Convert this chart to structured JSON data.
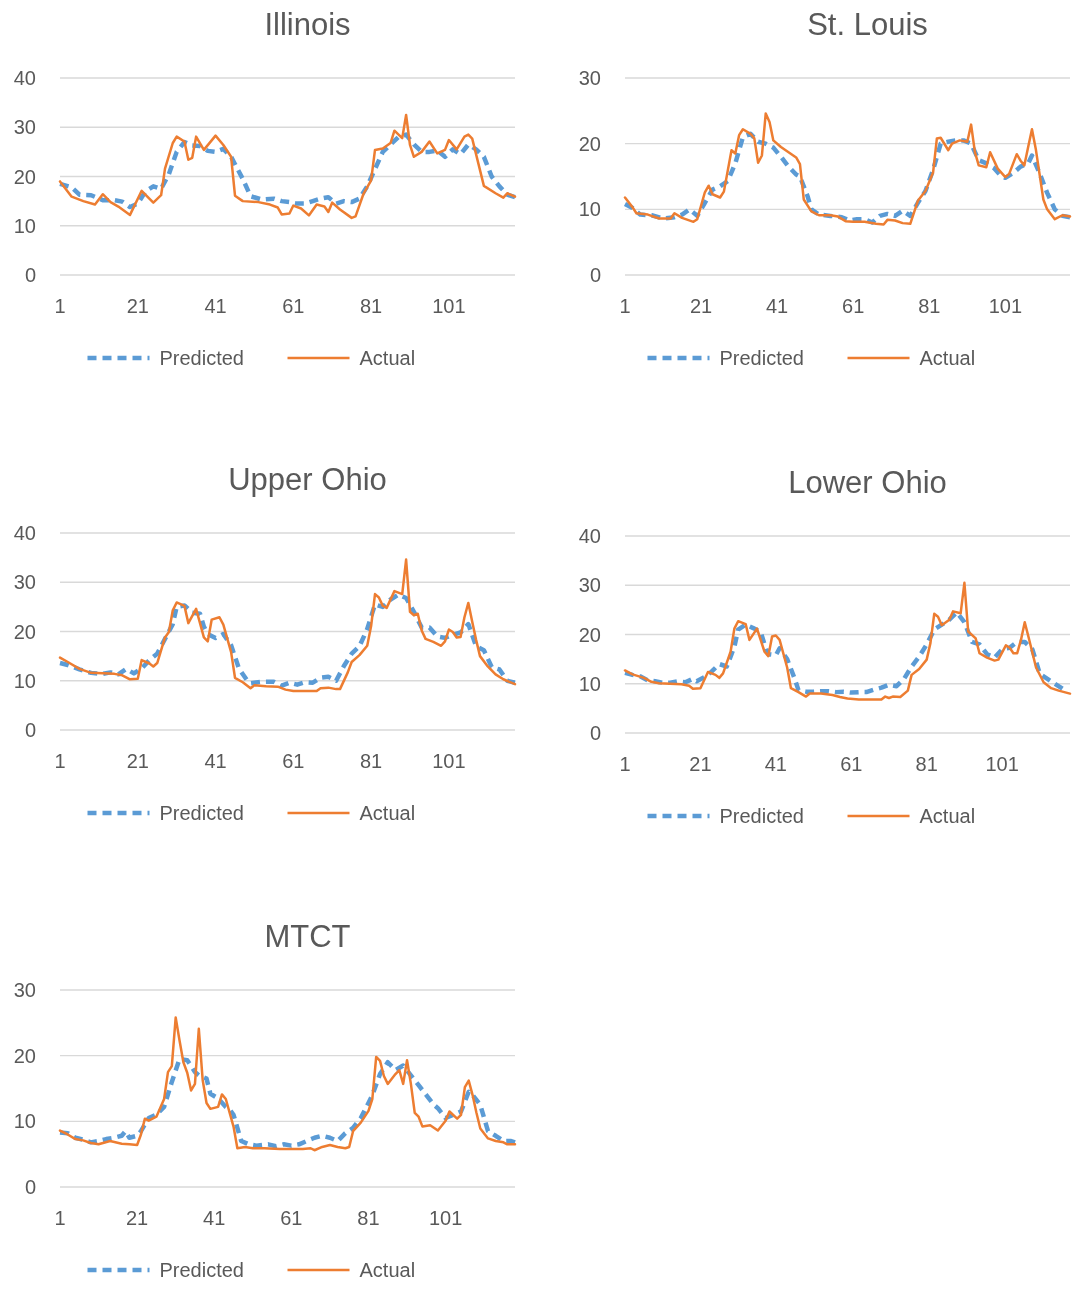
{
  "chart_data": [
    {
      "type": "line",
      "title": "Illinois",
      "xlim": [
        1,
        118
      ],
      "xticks": [
        1,
        21,
        41,
        61,
        81,
        101
      ],
      "ylim": [
        0,
        40
      ],
      "yticks": [
        0,
        10,
        20,
        30,
        40
      ],
      "grid": "y",
      "legend": "bottom",
      "series": [
        {
          "name": "Predicted",
          "color": "#5b9bd5",
          "line_style": "dashed",
          "x": [
            1,
            4,
            6,
            9,
            12,
            15,
            17,
            19,
            21,
            23,
            25,
            27,
            29,
            31,
            33,
            35,
            37,
            39,
            41,
            43,
            45,
            46,
            48,
            50,
            53,
            56,
            58,
            60,
            62,
            64,
            66,
            68,
            70,
            72,
            74,
            76,
            78,
            80,
            82,
            84,
            86,
            88,
            90,
            92,
            94,
            96,
            98,
            100,
            102,
            104,
            106,
            108,
            110,
            112,
            114,
            116,
            118
          ],
          "values": [
            18.5,
            17.8,
            16.3,
            16.2,
            15.2,
            15.2,
            14.9,
            13.8,
            14.5,
            17,
            18,
            17.5,
            20.5,
            25,
            27,
            26.3,
            26.2,
            25.2,
            25,
            25.6,
            24,
            22.5,
            19.5,
            16,
            15.3,
            15.5,
            15,
            14.8,
            14.5,
            14.5,
            15,
            15.5,
            15.8,
            14.5,
            15,
            14.8,
            15.5,
            18,
            21.5,
            25,
            26.5,
            28,
            28.5,
            26.5,
            25,
            25,
            25.3,
            24,
            25.5,
            24.5,
            26.5,
            25.5,
            24,
            20,
            18,
            16.3,
            15.8
          ]
        },
        {
          "name": "Actual",
          "color": "#ed7d31",
          "line_style": "solid",
          "x": [
            1,
            4,
            7,
            10,
            12,
            14,
            16,
            19,
            22,
            25,
            27,
            28,
            30,
            31,
            33,
            34,
            35,
            36,
            38,
            41,
            43,
            45,
            46,
            48,
            52,
            55,
            57,
            58,
            60,
            61,
            63,
            65,
            67,
            69,
            70,
            71,
            73,
            76,
            77,
            79,
            81,
            82,
            84,
            86,
            87,
            89,
            90,
            91,
            92,
            94,
            96,
            98,
            100,
            101,
            103,
            105,
            106,
            107,
            110,
            113,
            115,
            116,
            118
          ],
          "values": [
            19,
            15.9,
            15,
            14.3,
            16.4,
            14.8,
            13.9,
            12.2,
            17.1,
            14.7,
            16.2,
            21.6,
            26.8,
            28.1,
            27.1,
            23.4,
            23.8,
            28.1,
            25.4,
            28.3,
            26.4,
            24,
            16.1,
            15,
            14.8,
            14.3,
            13.7,
            12.3,
            12.5,
            14.1,
            13.5,
            12.1,
            14.3,
            13.9,
            12.8,
            14.7,
            13.3,
            11.6,
            11.9,
            16.4,
            19.2,
            25.4,
            25.7,
            26.8,
            29.3,
            27.8,
            32.5,
            26.4,
            24,
            25,
            27.1,
            24.7,
            25.4,
            27.4,
            25.5,
            28.1,
            28.5,
            27.7,
            18.1,
            16.6,
            15.7,
            16.6,
            15.9
          ]
        }
      ]
    },
    {
      "type": "line",
      "title": "St. Louis",
      "xlim": [
        1,
        118
      ],
      "xticks": [
        1,
        21,
        41,
        61,
        81,
        101
      ],
      "ylim": [
        0,
        30
      ],
      "yticks": [
        0,
        10,
        20,
        30
      ],
      "grid": "y",
      "legend": "bottom",
      "series": [
        {
          "name": "Predicted",
          "color": "#5b9bd5",
          "line_style": "dashed",
          "x": [
            1,
            3,
            5,
            8,
            11,
            14,
            16,
            18,
            19,
            20,
            22,
            24,
            26,
            28,
            30,
            32,
            34,
            36,
            38,
            40,
            42,
            44,
            46,
            47,
            49,
            50,
            52,
            55,
            58,
            60,
            62,
            64,
            66,
            68,
            70,
            72,
            74,
            76,
            78,
            80,
            82,
            84,
            86,
            88,
            90,
            92,
            94,
            96,
            98,
            100,
            101,
            103,
            105,
            107,
            108,
            110,
            112,
            114,
            116,
            118
          ],
          "values": [
            10.8,
            10.2,
            9.2,
            9.1,
            8.6,
            8.8,
            9.2,
            10,
            9.5,
            9,
            11,
            13,
            13.5,
            14.3,
            17,
            21,
            21.5,
            20.3,
            20,
            19.4,
            18,
            16.5,
            15.3,
            15,
            12,
            10,
            9.2,
            9,
            8.8,
            8.3,
            8.5,
            8.5,
            8,
            9,
            9.3,
            9,
            9.8,
            9,
            11,
            12.8,
            16,
            20,
            20.3,
            20.5,
            20.5,
            20,
            17.5,
            17,
            16.3,
            15,
            14.8,
            15.5,
            16.5,
            17,
            18.2,
            15.5,
            12.5,
            10,
            9,
            8.8
          ]
        },
        {
          "name": "Actual",
          "color": "#ed7d31",
          "line_style": "solid",
          "x": [
            1,
            3,
            4,
            7,
            10,
            13,
            14,
            16,
            19,
            20,
            22,
            23,
            24,
            26,
            27,
            29,
            30,
            31,
            32,
            34,
            35,
            36,
            37,
            38,
            39,
            40,
            42,
            44,
            46,
            47,
            48,
            50,
            52,
            55,
            57,
            59,
            61,
            64,
            67,
            69,
            70,
            72,
            74,
            76,
            78,
            80,
            82,
            83,
            84,
            86,
            87,
            89,
            91,
            92,
            93,
            94,
            96,
            97,
            99,
            101,
            102,
            104,
            105,
            106,
            107,
            108,
            109,
            111,
            112,
            114,
            116,
            118
          ],
          "values": [
            11.8,
            10.3,
            9.4,
            9.2,
            8.6,
            8.6,
            9.4,
            8.7,
            8.1,
            8.5,
            12.6,
            13.6,
            12.3,
            11.8,
            12.7,
            19,
            18.5,
            21.3,
            22.2,
            21.5,
            20.8,
            17.1,
            18.2,
            24.6,
            23.3,
            20.5,
            19.5,
            18.7,
            17.9,
            16.9,
            11.5,
            9.7,
            9.1,
            9.1,
            8.9,
            8.2,
            8.1,
            8.1,
            7.8,
            7.7,
            8.4,
            8.3,
            7.9,
            7.8,
            11.3,
            12.8,
            15.6,
            20.8,
            20.9,
            19,
            20,
            20.5,
            20.3,
            22.9,
            18.7,
            16.7,
            16.4,
            18.7,
            16.2,
            14.9,
            15.4,
            18.4,
            17.4,
            16.7,
            19.5,
            22.2,
            19.2,
            11.5,
            10,
            8.5,
            9.1,
            8.9
          ]
        }
      ]
    },
    {
      "type": "line",
      "title": "Upper Ohio",
      "xlim": [
        1,
        118
      ],
      "xticks": [
        1,
        21,
        41,
        61,
        81,
        101
      ],
      "ylim": [
        0,
        40
      ],
      "yticks": [
        0,
        10,
        20,
        30,
        40
      ],
      "grid": "y",
      "legend": "bottom",
      "series": [
        {
          "name": "Predicted",
          "color": "#5b9bd5",
          "line_style": "dashed",
          "x": [
            1,
            3,
            6,
            9,
            12,
            14,
            16,
            18,
            20,
            22,
            24,
            26,
            28,
            30,
            31,
            33,
            35,
            37,
            38,
            39,
            41,
            43,
            45,
            47,
            49,
            50,
            53,
            56,
            58,
            60,
            62,
            64,
            66,
            68,
            70,
            72,
            74,
            76,
            78,
            80,
            82,
            84,
            86,
            88,
            90,
            92,
            94,
            96,
            98,
            100,
            102,
            104,
            106,
            108,
            110,
            112,
            114,
            116,
            118
          ],
          "values": [
            13.6,
            13.2,
            12.3,
            11.6,
            11.4,
            11.7,
            11.3,
            12.4,
            11.5,
            12.5,
            14.2,
            15.5,
            18.5,
            21.5,
            25,
            25.3,
            23.8,
            23.6,
            21,
            19.5,
            18.7,
            19.5,
            17.2,
            12.5,
            10.2,
            9.5,
            9.8,
            9.8,
            9,
            9.6,
            9.2,
            9.7,
            9.6,
            10.6,
            10.8,
            10,
            13,
            15.5,
            17,
            20.5,
            25.5,
            25,
            26.5,
            27.5,
            26.8,
            24,
            20.8,
            20.8,
            19,
            18.7,
            19.3,
            19.8,
            21.5,
            17,
            16.2,
            12.8,
            12.3,
            10,
            9.6
          ]
        },
        {
          "name": "Actual",
          "color": "#ed7d31",
          "line_style": "solid",
          "x": [
            1,
            3,
            6,
            9,
            12,
            15,
            17,
            19,
            21,
            22,
            24,
            25,
            26,
            28,
            29,
            30,
            31,
            33,
            34,
            36,
            38,
            39,
            40,
            42,
            43,
            45,
            46,
            48,
            50,
            51,
            54,
            57,
            59,
            61,
            64,
            67,
            68,
            70,
            72,
            73,
            75,
            76,
            78,
            80,
            81,
            82,
            83,
            84,
            85,
            87,
            89,
            90,
            91,
            92,
            93,
            94,
            95,
            97,
            99,
            100,
            101,
            102,
            103,
            104,
            105,
            106,
            107,
            108,
            109,
            111,
            113,
            115,
            118
          ],
          "values": [
            14.7,
            13.8,
            12.4,
            11.6,
            11.5,
            11.4,
            11.1,
            10.3,
            10.4,
            14.2,
            13.5,
            12.9,
            13.6,
            18.8,
            19.9,
            24.3,
            25.9,
            25.2,
            21.7,
            24.6,
            18.8,
            18,
            22.4,
            22.9,
            21.4,
            15.8,
            10.6,
            9.7,
            8.5,
            9.1,
            8.9,
            8.8,
            8.2,
            7.9,
            7.9,
            7.9,
            8.5,
            8.6,
            8.3,
            8.3,
            11.7,
            13.8,
            15.2,
            17.1,
            21.1,
            27.6,
            26.9,
            25.2,
            24.8,
            28.2,
            27.6,
            34.6,
            24,
            23.3,
            23.6,
            20.2,
            18.5,
            17.9,
            17.1,
            18,
            20.4,
            19.9,
            18.8,
            18.9,
            22.9,
            25.8,
            22,
            18.3,
            15,
            12.9,
            11.3,
            10.3,
            9.3
          ]
        }
      ]
    },
    {
      "type": "line",
      "title": "Lower Ohio",
      "xlim": [
        1,
        119
      ],
      "xticks": [
        1,
        21,
        41,
        61,
        81,
        101
      ],
      "ylim": [
        0,
        40
      ],
      "yticks": [
        0,
        10,
        20,
        30,
        40
      ],
      "grid": "y",
      "legend": "bottom",
      "series": [
        {
          "name": "Predicted",
          "color": "#5b9bd5",
          "line_style": "dashed",
          "x": [
            1,
            3,
            5,
            7,
            9,
            11,
            13,
            15,
            17,
            19,
            20,
            22,
            24,
            26,
            28,
            30,
            31,
            33,
            35,
            37,
            38,
            39,
            41,
            42,
            44,
            46,
            47,
            49,
            51,
            53,
            55,
            57,
            59,
            61,
            63,
            65,
            67,
            69,
            71,
            73,
            75,
            77,
            79,
            81,
            83,
            85,
            87,
            89,
            91,
            93,
            95,
            97,
            99,
            101,
            103,
            105,
            107,
            109,
            111,
            113,
            115,
            117
          ],
          "values": [
            12.2,
            11.8,
            11.5,
            10.7,
            10.5,
            10.2,
            10.2,
            10.5,
            10.3,
            11,
            10.5,
            11.3,
            12.5,
            14,
            13.5,
            17.5,
            21,
            22,
            21.3,
            20.5,
            18,
            16,
            15.8,
            17.2,
            15,
            11,
            8.7,
            8.4,
            8.4,
            8.5,
            8.5,
            8.3,
            8.4,
            8.2,
            8.3,
            8.3,
            8.8,
            9.2,
            9.8,
            9.5,
            11,
            13.5,
            15.5,
            18,
            21,
            22,
            23,
            24.5,
            22.5,
            18.5,
            18,
            16,
            15.3,
            17,
            17.3,
            18.5,
            18.5,
            17,
            12,
            11,
            10,
            9
          ]
        },
        {
          "name": "Actual",
          "color": "#ed7d31",
          "line_style": "solid",
          "x": [
            1,
            3,
            6,
            8,
            10,
            13,
            16,
            18,
            19,
            21,
            23,
            25,
            26,
            27,
            29,
            30,
            31,
            33,
            34,
            36,
            38,
            39,
            40,
            41,
            42,
            44,
            45,
            47,
            49,
            50,
            53,
            56,
            58,
            60,
            63,
            66,
            69,
            70,
            71,
            72,
            74,
            76,
            77,
            79,
            81,
            82,
            83,
            84,
            85,
            87,
            88,
            90,
            91,
            92,
            94,
            95,
            97,
            99,
            100,
            102,
            103,
            104,
            105,
            106,
            107,
            108,
            110,
            112,
            114,
            116,
            119
          ],
          "values": [
            12.7,
            11.9,
            11.2,
            10.4,
            10.1,
            10,
            9.9,
            9.6,
            9,
            9.1,
            12.4,
            11.8,
            11.2,
            12.1,
            16.5,
            21.2,
            22.7,
            22.1,
            18.9,
            21.2,
            16.5,
            15.6,
            19.6,
            19.8,
            18.9,
            13.3,
            9.1,
            8.3,
            7.4,
            8,
            8,
            7.7,
            7.3,
            7,
            6.8,
            6.8,
            6.8,
            7.4,
            7.1,
            7.4,
            7.3,
            8.6,
            11.8,
            13,
            14.9,
            18.3,
            24.2,
            23.6,
            21.9,
            23,
            24.7,
            24.3,
            30.5,
            20.6,
            19.2,
            16.2,
            15.3,
            14.7,
            14.9,
            17.8,
            17.3,
            16.2,
            16.2,
            18.9,
            22.5,
            19.5,
            13.3,
            10.3,
            9.1,
            8.6,
            8
          ]
        }
      ]
    },
    {
      "type": "line",
      "title": "MTCT",
      "xlim": [
        1,
        119
      ],
      "xticks": [
        1,
        21,
        41,
        61,
        81,
        101
      ],
      "ylim": [
        0,
        30
      ],
      "yticks": [
        0,
        10,
        20,
        30
      ],
      "grid": "y",
      "legend": "bottom",
      "series": [
        {
          "name": "Predicted",
          "color": "#5b9bd5",
          "line_style": "dashed",
          "x": [
            1,
            3,
            5,
            7,
            9,
            11,
            13,
            15,
            17,
            18,
            19,
            21,
            22,
            24,
            26,
            28,
            30,
            32,
            34,
            36,
            37,
            39,
            40,
            42,
            44,
            45,
            46,
            48,
            50,
            52,
            55,
            57,
            59,
            61,
            63,
            65,
            67,
            69,
            71,
            73,
            75,
            77,
            79,
            81,
            82,
            84,
            86,
            88,
            90,
            92,
            94,
            96,
            98,
            99,
            101,
            103,
            105,
            107,
            108,
            110,
            112,
            114,
            116,
            118,
            119
          ],
          "values": [
            8.3,
            8.2,
            7.5,
            7.2,
            6.8,
            7,
            7.3,
            7.5,
            7.8,
            8.5,
            7.5,
            7.8,
            8.5,
            10.5,
            11,
            12.2,
            16,
            19.5,
            19.3,
            17.5,
            17,
            16.5,
            14.2,
            13.5,
            12.2,
            11.8,
            11,
            7,
            6.5,
            6.3,
            6.5,
            6.2,
            6.5,
            6.3,
            6.5,
            7,
            7.5,
            7.8,
            7.5,
            7,
            8.2,
            9,
            10.5,
            12.8,
            14,
            17.2,
            19,
            17.8,
            18.5,
            17,
            15.5,
            14,
            12.5,
            12,
            10.5,
            11,
            11.5,
            14.5,
            14,
            12.5,
            8.5,
            7.8,
            7,
            7,
            6.8
          ]
        },
        {
          "name": "Actual",
          "color": "#ed7d31",
          "line_style": "solid",
          "x": [
            1,
            3,
            5,
            7,
            9,
            11,
            14,
            17,
            19,
            21,
            22,
            23,
            24,
            26,
            28,
            29,
            30,
            31,
            32,
            33,
            34,
            35,
            36,
            37,
            38,
            39,
            40,
            42,
            43,
            44,
            46,
            47,
            49,
            51,
            54,
            58,
            61,
            64,
            66,
            67,
            69,
            71,
            73,
            75,
            76,
            77,
            79,
            81,
            82,
            83,
            84,
            85,
            86,
            88,
            89,
            90,
            91,
            92,
            93,
            94,
            95,
            97,
            99,
            101,
            102,
            104,
            105,
            106,
            107,
            108,
            109,
            110,
            112,
            114,
            116,
            117,
            119
          ],
          "values": [
            8.6,
            8,
            7.3,
            7.1,
            6.7,
            6.5,
            7,
            6.6,
            6.5,
            6.4,
            8,
            10.4,
            10.1,
            10.7,
            13.4,
            17.5,
            18.4,
            25.8,
            22.3,
            19,
            17.4,
            14.7,
            15.7,
            24.1,
            16.3,
            12.8,
            11.9,
            12.2,
            14.1,
            13.4,
            9.2,
            5.9,
            6.1,
            5.9,
            5.9,
            5.8,
            5.8,
            5.8,
            5.9,
            5.6,
            6.1,
            6.4,
            6.1,
            5.9,
            6.1,
            8.5,
            9.8,
            11.6,
            13.4,
            19.8,
            19.2,
            16.9,
            15.7,
            17.2,
            17.8,
            15.7,
            19.3,
            15.7,
            11.3,
            10.7,
            9.2,
            9.4,
            8.6,
            10.1,
            11.5,
            10.4,
            11,
            15.2,
            16.2,
            14,
            11.3,
            8.9,
            7.4,
            7,
            6.8,
            6.5,
            6.5
          ]
        }
      ]
    }
  ]
}
